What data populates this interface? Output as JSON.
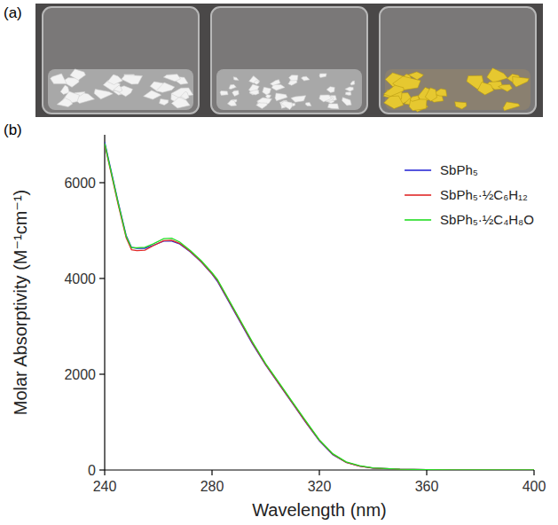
{
  "panels": {
    "a": "(a)",
    "b": "(b)"
  },
  "chart_data": {
    "type": "line",
    "x_label": "Wavelength (nm)",
    "y_label": "Molar Absorptivity (M⁻¹cm⁻¹)",
    "xlim": [
      240,
      400
    ],
    "xticks": [
      240,
      280,
      320,
      360,
      400
    ],
    "ylim": [
      0,
      7000
    ],
    "yticks": [
      0,
      2000,
      4000,
      6000
    ],
    "grid": false,
    "legend": "top-right",
    "x": [
      240,
      245,
      248,
      250,
      252,
      255,
      258,
      262,
      265,
      268,
      272,
      276,
      280,
      282,
      285,
      290,
      295,
      300,
      305,
      310,
      315,
      320,
      325,
      330,
      335,
      340,
      350,
      360,
      380,
      400
    ],
    "series": [
      {
        "name": "SbPh₅",
        "color": "#2b2bd6",
        "values": [
          6850,
          5600,
          4900,
          4650,
          4630,
          4630,
          4690,
          4780,
          4780,
          4720,
          4550,
          4340,
          4090,
          3940,
          3640,
          3140,
          2640,
          2190,
          1790,
          1390,
          990,
          610,
          320,
          160,
          80,
          40,
          15,
          5,
          0,
          0
        ]
      },
      {
        "name": "SbPh₅·½C₆H₁₂",
        "color": "#e02828",
        "values": [
          6800,
          5550,
          4850,
          4600,
          4580,
          4590,
          4680,
          4790,
          4800,
          4730,
          4560,
          4350,
          4100,
          3960,
          3660,
          3160,
          2660,
          2200,
          1800,
          1400,
          1000,
          620,
          330,
          160,
          80,
          40,
          15,
          5,
          0,
          0
        ]
      },
      {
        "name": "SbPh₅·½C₄H₈O",
        "color": "#22dd22",
        "values": [
          6820,
          5580,
          4880,
          4640,
          4640,
          4650,
          4720,
          4830,
          4840,
          4760,
          4580,
          4370,
          4120,
          3980,
          3680,
          3180,
          2680,
          2220,
          1820,
          1420,
          1020,
          630,
          340,
          170,
          90,
          45,
          18,
          6,
          0,
          0
        ]
      }
    ]
  }
}
